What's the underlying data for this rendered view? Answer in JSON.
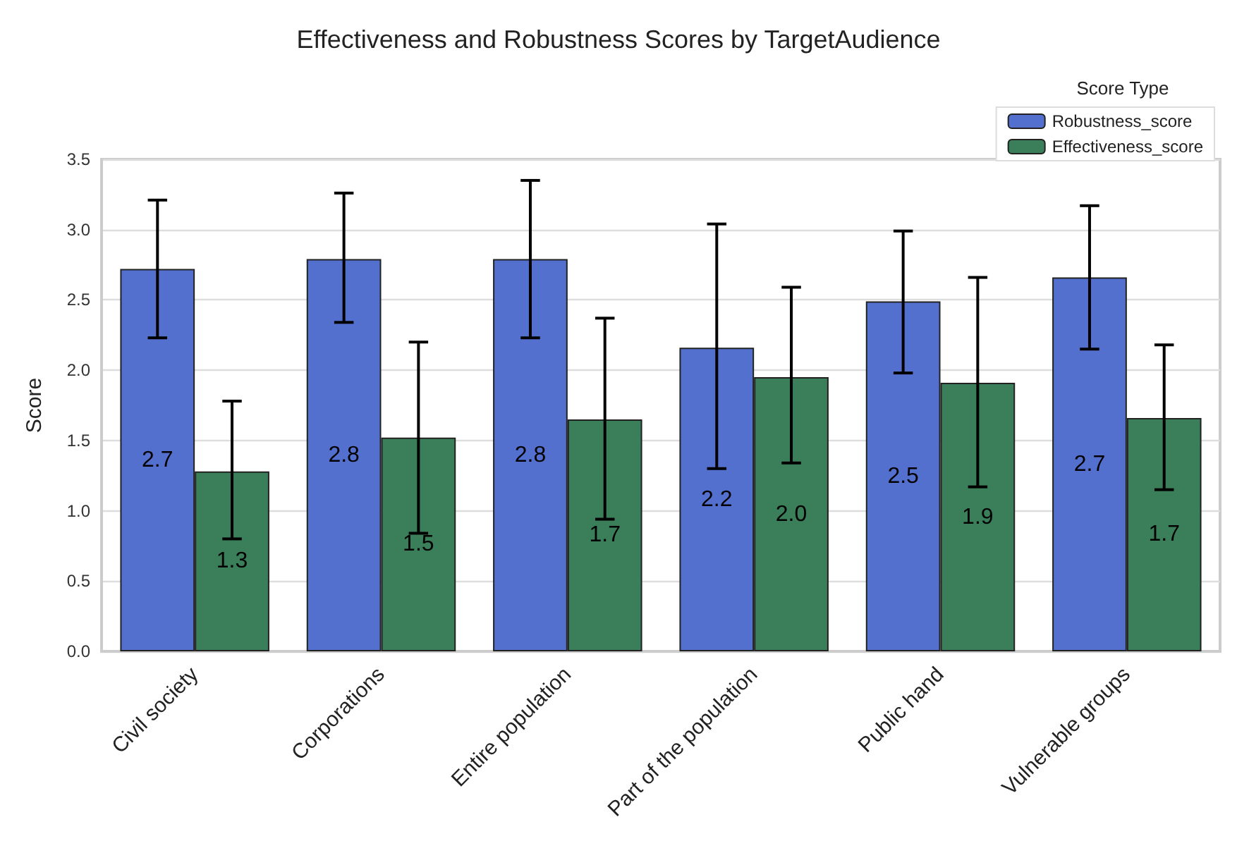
{
  "chart_data": {
    "type": "bar",
    "title": "Effectiveness and Robustness Scores by TargetAudience",
    "ylabel": "Score",
    "legend_title": "Score Type",
    "categories": [
      "Civil society",
      "Corporations",
      "Entire population",
      "Part of the population",
      "Public hand",
      "Vulnerable groups"
    ],
    "series": [
      {
        "name": "Robustness_score",
        "color": "#5470cf",
        "values": [
          2.72,
          2.79,
          2.79,
          2.16,
          2.49,
          2.66
        ],
        "value_labels": [
          "2.7",
          "2.8",
          "2.8",
          "2.2",
          "2.5",
          "2.7"
        ],
        "errors": [
          [
            2.23,
            3.21
          ],
          [
            2.34,
            3.26
          ],
          [
            2.23,
            3.35
          ],
          [
            1.3,
            3.04
          ],
          [
            1.98,
            2.99
          ],
          [
            2.15,
            3.17
          ]
        ]
      },
      {
        "name": "Effectiveness_score",
        "color": "#3a7f59",
        "values": [
          1.28,
          1.52,
          1.65,
          1.95,
          1.91,
          1.66
        ],
        "value_labels": [
          "1.3",
          "1.5",
          "1.7",
          "2.0",
          "1.9",
          "1.7"
        ],
        "errors": [
          [
            0.8,
            1.78
          ],
          [
            0.84,
            2.2
          ],
          [
            0.94,
            2.37
          ],
          [
            1.34,
            2.59
          ],
          [
            1.17,
            2.66
          ],
          [
            1.15,
            2.18
          ]
        ]
      }
    ],
    "ylim": [
      0,
      3.5
    ],
    "yticks": [
      {
        "value": 0,
        "label": "0.0"
      },
      0.5,
      {
        "value": 1,
        "label": "1.0"
      },
      1.5,
      {
        "value": 2,
        "label": "2.0"
      },
      2.5,
      {
        "value": 3,
        "label": "3.0"
      },
      3.5
    ],
    "grid": "y",
    "legend": "top right"
  }
}
